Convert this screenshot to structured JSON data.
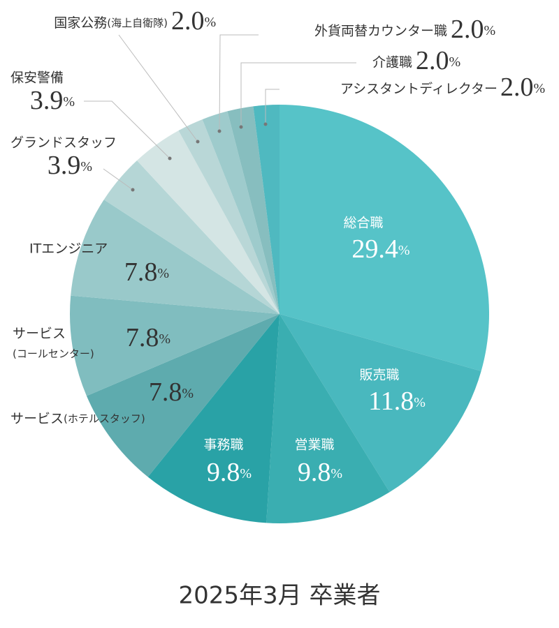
{
  "chart_data": {
    "type": "pie",
    "title": "2025年3月 卒業者",
    "categories": [
      "総合職",
      "販売職",
      "営業職",
      "事務職",
      "サービス(ホテルスタッフ)",
      "サービス(コールセンター)",
      "ITエンジニア",
      "グランドスタッフ",
      "保安警備",
      "国家公務(海上自衛隊)",
      "外貨両替カウンター職",
      "介護職",
      "アシスタントディレクター"
    ],
    "values": [
      29.4,
      11.8,
      9.8,
      9.8,
      7.8,
      7.8,
      7.8,
      3.9,
      3.9,
      2.0,
      2.0,
      2.0,
      2.0
    ],
    "value_labels": [
      "29.4",
      "11.8",
      "9.8",
      "9.8",
      "7.8",
      "7.8",
      "7.8",
      "3.9",
      "3.9",
      "2.0",
      "2.0",
      "2.0",
      "2.0"
    ],
    "unit": "%",
    "colors": [
      "#56c3c8",
      "#49b8be",
      "#3aaeb1",
      "#29a2a6",
      "#5eabae",
      "#80bdbf",
      "#99c9ca",
      "#b5d6d6",
      "#d4e5e4",
      "#b9d7d7",
      "#9ecbcc",
      "#87bebf",
      "#4fb9c0"
    ]
  }
}
